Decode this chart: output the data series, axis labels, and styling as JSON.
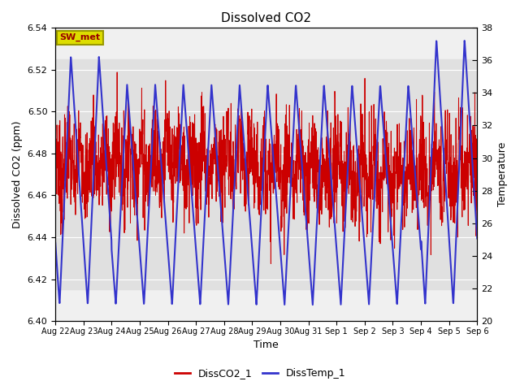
{
  "title": "Dissolved CO2",
  "ylabel_left": "Dissolved CO2 (ppm)",
  "ylabel_right": "Temperature",
  "xlabel": "Time",
  "ylim_left": [
    6.4,
    6.54
  ],
  "ylim_right": [
    20,
    38
  ],
  "y_ticks_left": [
    6.4,
    6.42,
    6.44,
    6.46,
    6.48,
    6.5,
    6.52,
    6.54
  ],
  "y_ticks_right": [
    20,
    22,
    24,
    26,
    28,
    30,
    32,
    34,
    36,
    38
  ],
  "x_tick_labels": [
    "Aug 22",
    "Aug 23",
    "Aug 24",
    "Aug 25",
    "Aug 26",
    "Aug 27",
    "Aug 28",
    "Aug 29",
    "Aug 30",
    "Aug 31",
    "Sep 1",
    "Sep 2",
    "Sep 3",
    "Sep 4",
    "Sep 5",
    "Sep 6"
  ],
  "legend_labels": [
    "DissCO2_1",
    "DissTemp_1"
  ],
  "legend_colors": [
    "#cc0000",
    "#3333cc"
  ],
  "co2_color": "#cc0000",
  "temp_color": "#3333cc",
  "annotation_text": "SW_met",
  "annotation_bg": "#dddd00",
  "annotation_border": "#999900",
  "shaded_region_color": "#e0e0e0",
  "shaded_ylim": [
    6.415,
    6.525
  ],
  "n_days": 15,
  "points_per_day": 144,
  "co2_base": 6.474,
  "co2_noise": 0.012,
  "temp_min_base": 21.0,
  "temp_max_base": 34.5,
  "background_color": "#f0f0f0"
}
